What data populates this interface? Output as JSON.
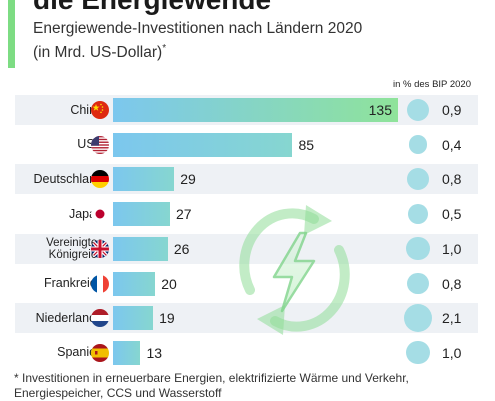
{
  "header": {
    "title": "die Energiewende",
    "subtitle": "Energiewende-Investitionen nach Ländern 2020",
    "unit": "(in Mrd. US-Dollar)",
    "unit_mark": "*",
    "bip_header": "in % des BIP 2020"
  },
  "colors": {
    "accent": "#7ddc83",
    "bar_start": "#8fe39a",
    "bar_end": "#7cc7ee",
    "circle": "#a5dde5",
    "shaded_row": "#eef1f5"
  },
  "chart_data": {
    "type": "bar",
    "orientation": "horizontal",
    "title": "die Energiewende",
    "subtitle": "Energiewende-Investitionen nach Ländern 2020",
    "unit": "(in Mrd. US-Dollar)",
    "categories": [
      "China",
      "USA",
      "Deutschland",
      "Japan",
      "Vereinigtes Königreich",
      "Frankreich",
      "Niederlande",
      "Spanien"
    ],
    "category_lines": [
      [
        "China"
      ],
      [
        "USA"
      ],
      [
        "Deutschland"
      ],
      [
        "Japan"
      ],
      [
        "Vereinigtes",
        "Königreich"
      ],
      [
        "Frankreich"
      ],
      [
        "Niederlande"
      ],
      [
        "Spanien"
      ]
    ],
    "values": [
      135,
      85,
      29,
      27,
      26,
      20,
      19,
      13
    ],
    "value_labels": [
      "135",
      "85",
      "29",
      "27",
      "26",
      "20",
      "19",
      "13"
    ],
    "secondary_series": {
      "name": "in % des BIP 2020",
      "values": [
        0.9,
        0.4,
        0.8,
        0.5,
        1.0,
        0.8,
        2.1,
        1.0
      ],
      "labels": [
        "0,9",
        "0,4",
        "0,8",
        "0,5",
        "1,0",
        "0,8",
        "2,1",
        "1,0"
      ]
    },
    "flags": [
      "china-flag-icon",
      "usa-flag-icon",
      "germany-flag-icon",
      "japan-flag-icon",
      "uk-flag-icon",
      "france-flag-icon",
      "netherlands-flag-icon",
      "spain-flag-icon"
    ],
    "xlim": [
      0,
      135
    ]
  },
  "footnote": {
    "line1": "* Investitionen in erneuerbare Energien, elektrifizierte Wärme und Verkehr,",
    "line2": "Energiespeicher, CCS und Wasserstoff"
  },
  "decoration": {
    "icon": "renewable-energy-bolt-icon"
  }
}
